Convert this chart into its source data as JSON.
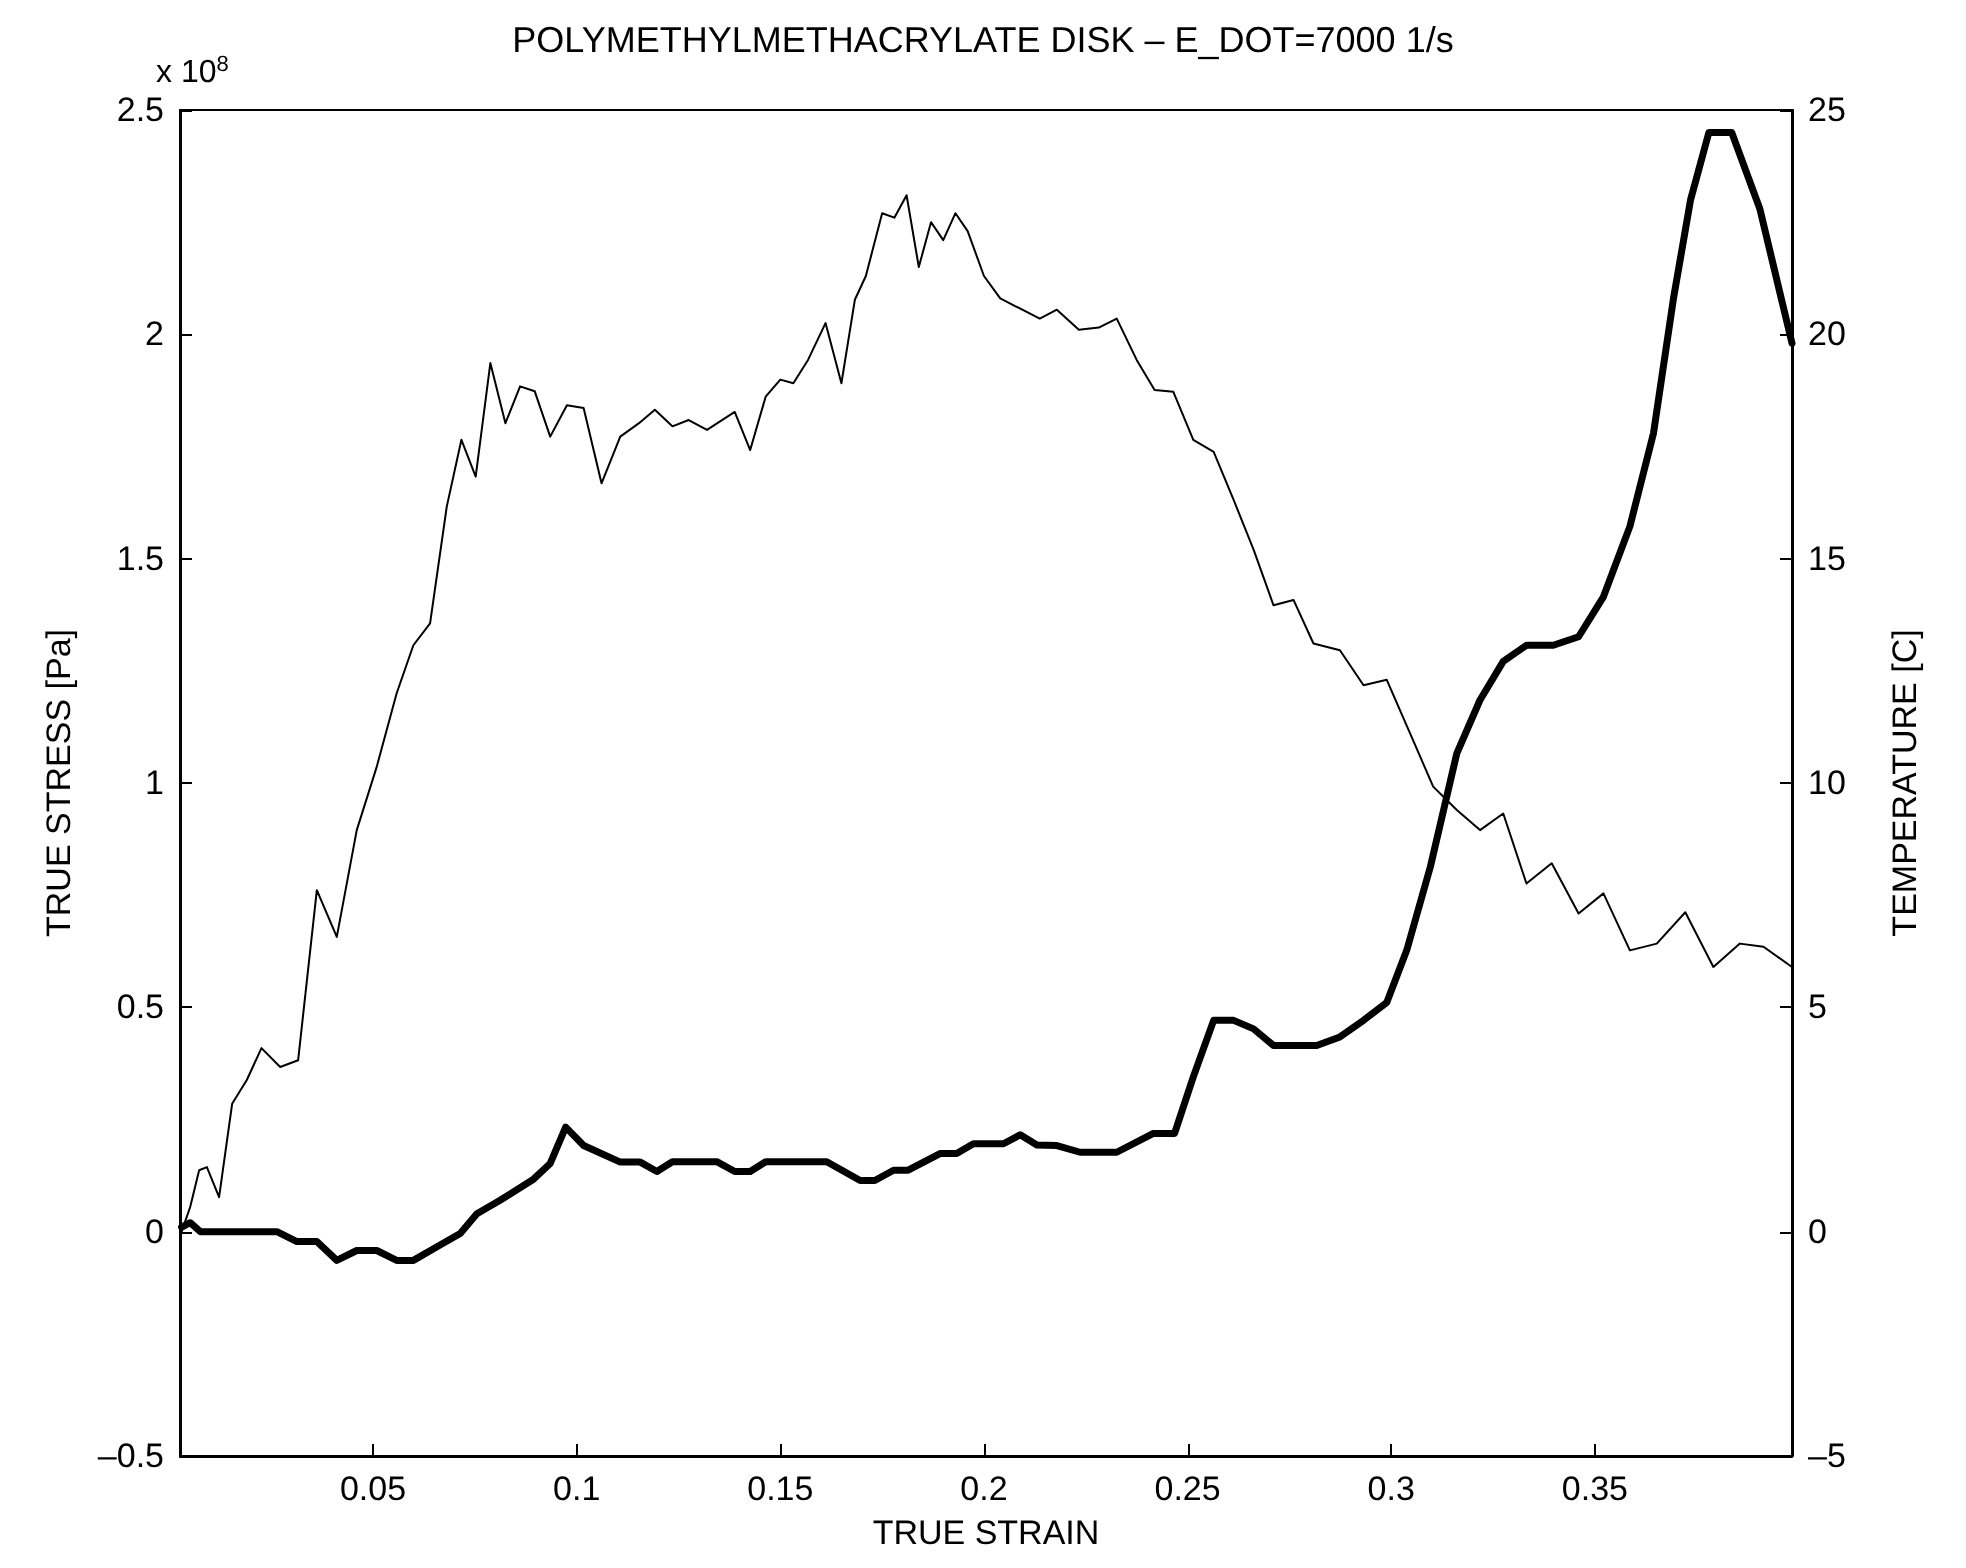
{
  "chart_data": {
    "type": "line",
    "title": "POLYMETHYLMETHACRYLATE DISK – E_DOT=7000 1/s",
    "xlabel": "TRUE STRAIN",
    "ylabel": "TRUE STRESS [Pa]",
    "y2label": "TEMPERATURE [C]",
    "annotations": [
      "x 10$^{8}$"
    ],
    "xlim": [
      0.0026,
      0.3984
    ],
    "xticks": [
      0.05,
      0.1,
      0.15,
      0.2,
      0.25,
      0.3,
      0.35
    ],
    "ylim": [
      -0.5,
      2.5
    ],
    "yticks": [
      {
        "value": -0.5,
        "label": "–0.5"
      },
      0,
      0.5,
      1,
      1.5,
      2,
      2.5
    ],
    "y2lim": [
      -5,
      25
    ],
    "y2ticks": [
      {
        "value": -5,
        "label": "–5"
      },
      0,
      5,
      10,
      15,
      20,
      25
    ],
    "grid": false,
    "marker": "none",
    "line_style": "solid",
    "series": [
      {
        "color": "#000000",
        "x": [
          0.003,
          0.0051,
          0.0073,
          0.0092,
          0.0122,
          0.0154,
          0.019,
          0.0226,
          0.0272,
          0.0316,
          0.0362,
          0.0411,
          0.046,
          0.0509,
          0.0558,
          0.0599,
          0.064,
          0.0681,
          0.0717,
          0.0752,
          0.0788,
          0.0825,
          0.0861,
          0.0897,
          0.0935,
          0.0976,
          0.1017,
          0.1061,
          0.1107,
          0.1153,
          0.1192,
          0.1235,
          0.1275,
          0.132,
          0.1388,
          0.1426,
          0.1464,
          0.15,
          0.1532,
          0.1568,
          0.1611,
          0.165,
          0.1683,
          0.171,
          0.175,
          0.178,
          0.181,
          0.184,
          0.187,
          0.19,
          0.193,
          0.196,
          0.2,
          0.204,
          0.2137,
          0.2179,
          0.2233,
          0.2282,
          0.2326,
          0.2375,
          0.2419,
          0.2465,
          0.2514,
          0.2564,
          0.2613,
          0.2662,
          0.2711,
          0.276,
          0.2809,
          0.2874,
          0.2932,
          0.2989,
          0.3046,
          0.3103,
          0.3161,
          0.3218,
          0.3275,
          0.3332,
          0.3394,
          0.346,
          0.3521,
          0.3586,
          0.3652,
          0.3722,
          0.3791,
          0.3856,
          0.3914,
          0.3984
        ],
        "values": [
          0.0,
          0.055,
          0.137,
          0.144,
          0.077,
          0.285,
          0.338,
          0.409,
          0.367,
          0.382,
          0.761,
          0.657,
          0.895,
          1.036,
          1.2,
          1.307,
          1.356,
          1.616,
          1.765,
          1.683,
          1.936,
          1.802,
          1.884,
          1.873,
          1.772,
          1.842,
          1.836,
          1.668,
          1.772,
          1.802,
          1.832,
          1.795,
          1.809,
          1.787,
          1.827,
          1.742,
          1.861,
          1.899,
          1.891,
          1.943,
          2.025,
          1.891,
          2.077,
          2.13,
          2.27,
          2.26,
          2.31,
          2.15,
          2.25,
          2.21,
          2.27,
          2.23,
          2.13,
          2.08,
          2.035,
          2.055,
          2.01,
          2.015,
          2.035,
          1.943,
          1.876,
          1.872,
          1.765,
          1.738,
          1.631,
          1.52,
          1.396,
          1.408,
          1.311,
          1.296,
          1.218,
          1.23,
          1.111,
          0.992,
          0.94,
          0.895,
          0.932,
          0.776,
          0.821,
          0.709,
          0.754,
          0.627,
          0.642,
          0.712,
          0.59,
          0.642,
          0.635,
          0.59
        ]
      },
      {
        "color": "#000000",
        "axis": "y2",
        "x": [
          0.003,
          0.0051,
          0.0076,
          0.0264,
          0.0313,
          0.0362,
          0.0411,
          0.046,
          0.0509,
          0.0558,
          0.0599,
          0.0656,
          0.0714,
          0.0755,
          0.0812,
          0.0894,
          0.0935,
          0.0973,
          0.1017,
          0.1107,
          0.1156,
          0.1197,
          0.1235,
          0.1344,
          0.1388,
          0.1426,
          0.1464,
          0.1614,
          0.1696,
          0.1732,
          0.1778,
          0.1814,
          0.1892,
          0.1933,
          0.1974,
          0.2048,
          0.2089,
          0.213,
          0.2179,
          0.2236,
          0.2326,
          0.2416,
          0.2468,
          0.2514,
          0.2564,
          0.2613,
          0.2662,
          0.2711,
          0.2817,
          0.2874,
          0.2932,
          0.2989,
          0.3038,
          0.3096,
          0.3161,
          0.3218,
          0.3275,
          0.3332,
          0.3398,
          0.346,
          0.3521,
          0.3586,
          0.3644,
          0.3693,
          0.3735,
          0.378,
          0.3836,
          0.3905,
          0.3984
        ],
        "values": [
          0.1,
          0.2,
          0,
          0,
          -0.22,
          -0.22,
          -0.64,
          -0.42,
          -0.42,
          -0.64,
          -0.64,
          -0.34,
          -0.04,
          0.4,
          0.7,
          1.17,
          1.52,
          2.33,
          1.92,
          1.55,
          1.55,
          1.34,
          1.56,
          1.56,
          1.34,
          1.34,
          1.56,
          1.56,
          1.14,
          1.14,
          1.37,
          1.37,
          1.74,
          1.74,
          1.96,
          1.96,
          2.16,
          1.93,
          1.92,
          1.77,
          1.77,
          2.19,
          2.19,
          3.45,
          4.71,
          4.71,
          4.52,
          4.15,
          4.15,
          4.34,
          4.71,
          5.11,
          6.27,
          8.13,
          10.66,
          11.85,
          12.71,
          13.07,
          13.07,
          13.26,
          14.15,
          15.72,
          17.8,
          20.8,
          23.0,
          24.5,
          24.5,
          22.8,
          19.8
        ]
      }
    ]
  }
}
